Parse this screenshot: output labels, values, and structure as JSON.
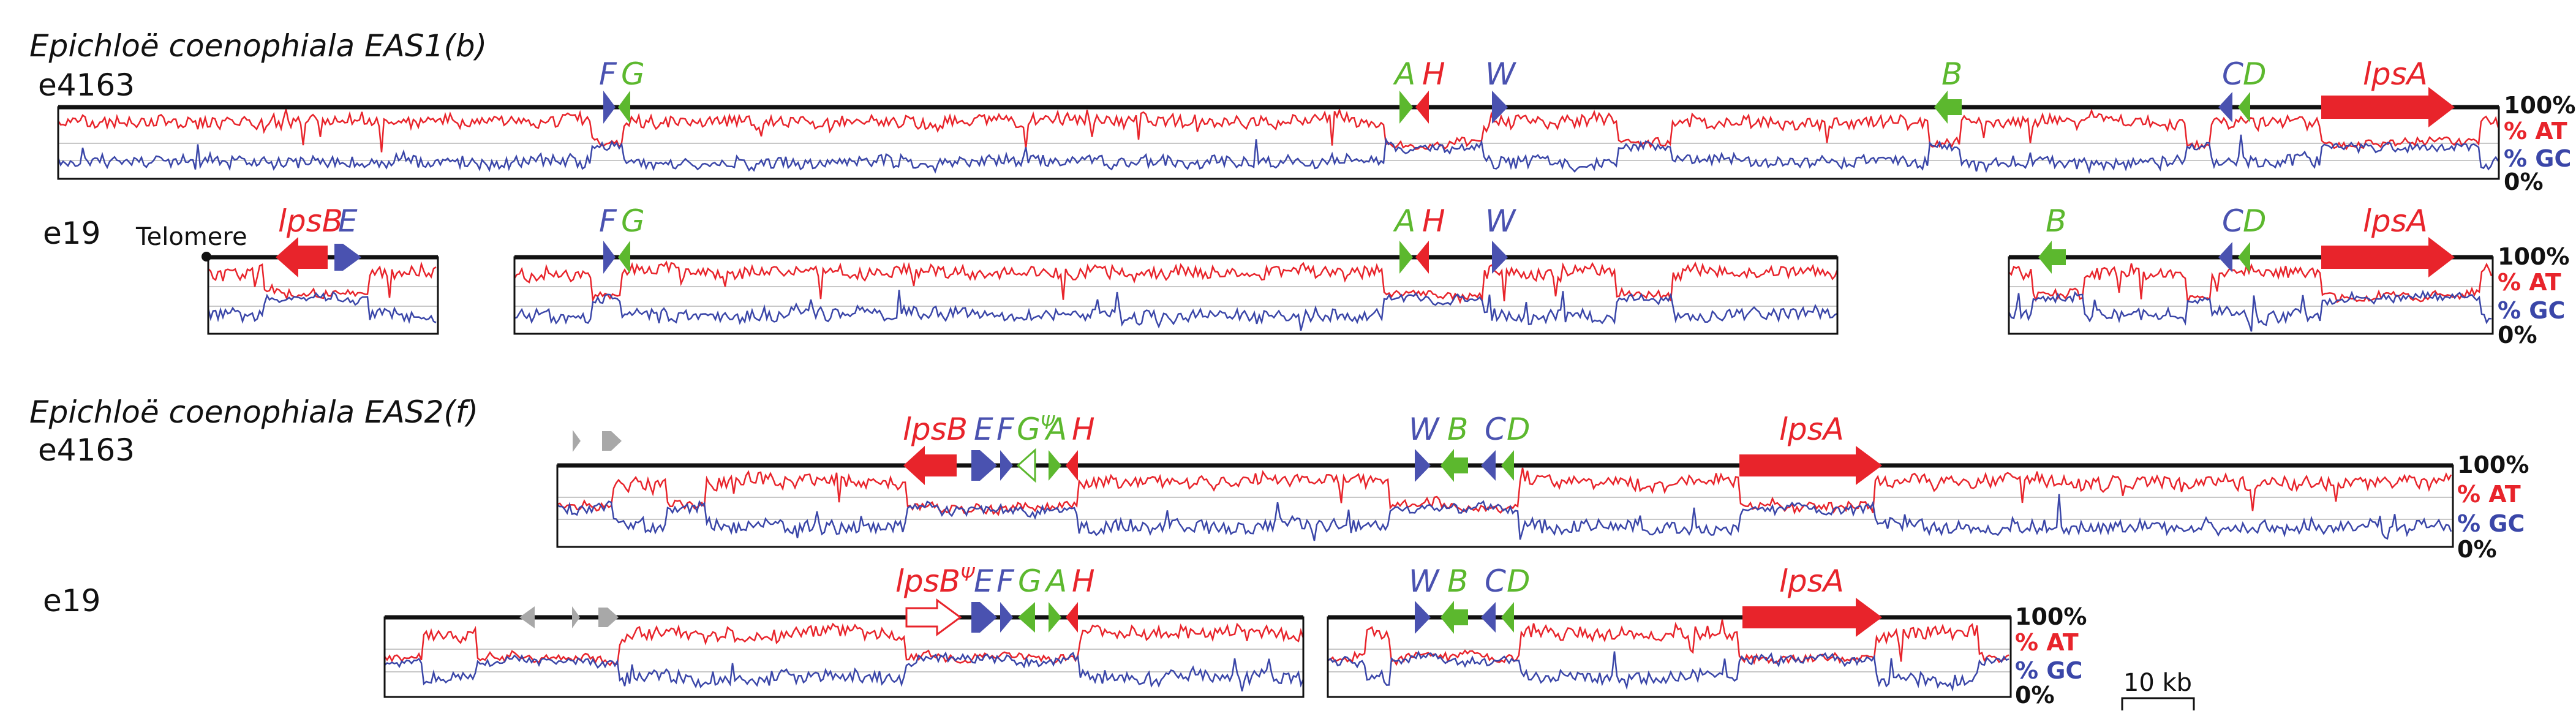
{
  "headers": {
    "eas1": {
      "italic": "Epichloë coenophiala EAS1",
      "suffix": "(b)"
    },
    "eas2": {
      "italic": "Epichloë coenophiala EAS2",
      "suffix": "(f)"
    }
  },
  "strains": {
    "r1": "e4163",
    "r2": "e19",
    "r3": "e4163",
    "r4": "e19"
  },
  "telomere_label": "Telomere",
  "pct_labels": {
    "top": "100%",
    "at": "% AT",
    "gc": "% GC",
    "bottom": "0%"
  },
  "scale_bar": {
    "label": "10 kb",
    "kb": 10
  },
  "colors": {
    "at": "#e8242b",
    "gc": "#3a46a8",
    "blue_gene": "#4a52b0",
    "green_gene": "#5cb82e",
    "red_gene": "#e8242b",
    "grey_gene": "#a8a8a8"
  },
  "gene_labels": {
    "r1": {
      "F": "F",
      "G": "G",
      "A": "A",
      "H": "H",
      "W": "W",
      "B": "B",
      "C": "C",
      "D": "D",
      "lpsA": "lpsA"
    },
    "r2": {
      "lpsB": "lpsB",
      "E": "E",
      "F": "F",
      "G": "G",
      "A": "A",
      "H": "H",
      "W": "W",
      "B": "B",
      "C": "C",
      "D": "D",
      "lpsA": "lpsA"
    },
    "r3": {
      "lpsB": "lpsB",
      "E": "E",
      "F": "F",
      "G": "G",
      "gpsi": "Ψ",
      "A": "A",
      "H": "H",
      "W": "W",
      "B": "B",
      "C": "C",
      "D": "D",
      "lpsA": "lpsA"
    },
    "r4": {
      "lpsB": "lpsB",
      "bpsi": "Ψ",
      "E": "E",
      "F": "F",
      "G": "G",
      "A": "A",
      "H": "H",
      "W": "W",
      "B": "B",
      "C": "C",
      "D": "D",
      "lpsA": "lpsA"
    }
  }
}
